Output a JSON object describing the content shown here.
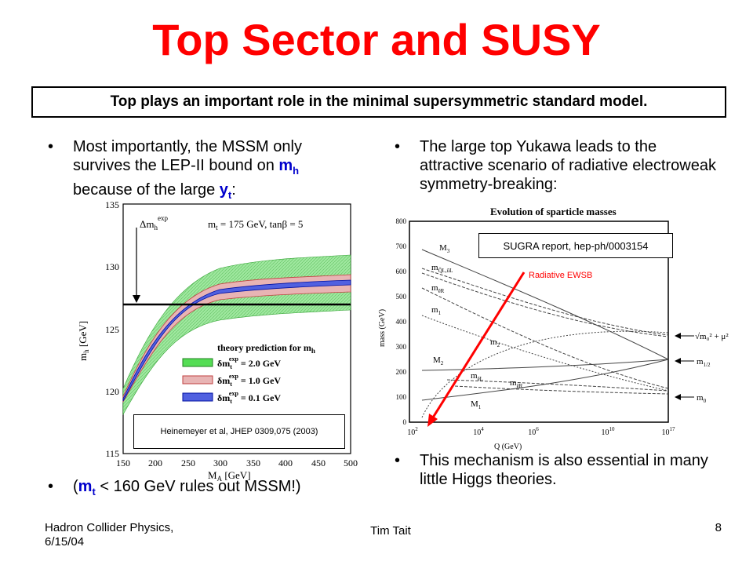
{
  "slide": {
    "title": "Top Sector and SUSY",
    "banner": "Top plays an important role in the minimal supersymmetric standard model.",
    "left_bullet1": {
      "text_a": "Most importantly, the MSSM only survives the LEP-II bound on ",
      "m": "m",
      "h": "h",
      "text_b": " because of the large ",
      "y": "y",
      "t": "t",
      "text_c": ":"
    },
    "left_bullet2": {
      "open": "(",
      "m": "m",
      "t": "t",
      "rest": " < 160 GeV rules out MSSM!)"
    },
    "right_bullet1": "The large top Yukawa leads to the attractive scenario of radiative electroweak symmetry-breaking:",
    "right_bullet2": "This mechanism is also essential in many little Higgs theories.",
    "bullet_char": "•",
    "left_figure_ref": "Heinemeyer et al, JHEP 0309,075 (2003)",
    "right_figure_ref": "SUGRA report, hep-ph/0003154",
    "right_figure_annotation": "Radiative EWSB"
  },
  "footer": {
    "left_line1": "Hadron Collider Physics,",
    "left_line2": "6/15/04",
    "center": "Tim Tait",
    "page": "8"
  },
  "left_chart": {
    "x_label": "M",
    "x_label_sub": "A",
    "x_label_unit": " [GeV]",
    "y_label": "m",
    "y_label_sub": "h",
    "y_label_unit": " [GeV]",
    "x_ticks": [
      "150",
      "200",
      "250",
      "300",
      "350",
      "400",
      "450",
      "500"
    ],
    "y_ticks": [
      "115",
      "120",
      "125",
      "130",
      "135"
    ],
    "annotation": "Δm",
    "annotation_sub": "h",
    "annotation_sup": "exp",
    "params": "m",
    "params_sub": "t",
    "params_rest": " = 175 GeV, tanβ = 5",
    "legend_title": "theory prediction for m",
    "legend_title_sub": "h",
    "legend_items": [
      {
        "color": "#55dd55",
        "sub": "t",
        "sup": "exp",
        "value": " = 2.0 GeV",
        "prefix": "δm"
      },
      {
        "color": "#e0a0a0",
        "sub": "t",
        "sup": "exp",
        "value": " = 1.0 GeV",
        "prefix": "δm"
      },
      {
        "color": "#3344dd",
        "sub": "t",
        "sup": "exp",
        "value": " = 0.1 GeV",
        "prefix": "δm"
      }
    ],
    "lep_bound": 127.0
  },
  "right_chart": {
    "title": "Evolution of sparticle masses",
    "x_label": "Q  (GeV)",
    "y_label": "mass (GeV)",
    "y_ticks": [
      "0",
      "100",
      "200",
      "300",
      "400",
      "500",
      "600",
      "700",
      "800"
    ],
    "x_ticks": [
      {
        "base": "10",
        "exp": "2"
      },
      {
        "base": "10",
        "exp": "4"
      },
      {
        "base": "10",
        "exp": "6"
      },
      {
        "base": "10",
        "exp": "10"
      },
      {
        "base": "10",
        "exp": "17"
      }
    ],
    "curve_labels": {
      "M3": "M",
      "M3_sub": "3",
      "mQL": "m",
      "mQL_sub": "Q̃L,ũL",
      "meR": "m",
      "meR_sub": "ẽR",
      "m1": "m",
      "m1_sub": "1",
      "m2": "m",
      "m2_sub": "2",
      "M2": "M",
      "M2_sub": "2",
      "mL": "m",
      "mL_sub": "ẽL",
      "meR2": "m",
      "meR2_sub": "ẽR",
      "M1": "M",
      "M1_sub": "1"
    },
    "right_labels": {
      "sqrt": "√m₀² + μ²",
      "m12": "m",
      "m12_sub": "1/2",
      "m0": "m",
      "m0_sub": "0"
    }
  }
}
